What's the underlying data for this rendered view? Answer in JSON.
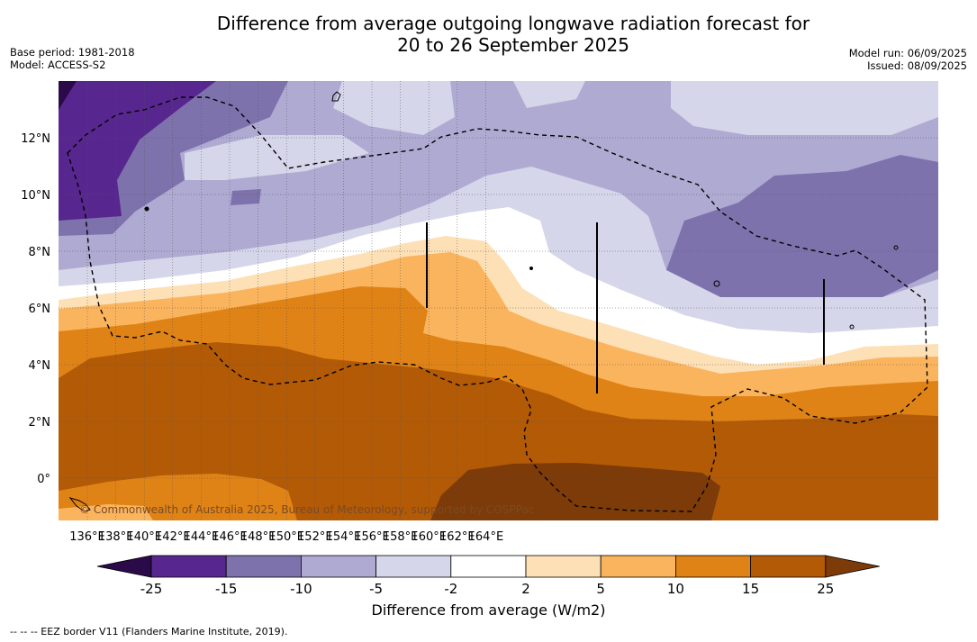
{
  "header": {
    "title_line1": "Difference from average outgoing longwave radiation forecast for",
    "title_line2": "20 to 26 September 2025",
    "base_period": "Base period: 1981-2018",
    "model": "Model: ACCESS-S2",
    "model_run": "Model run: 06/09/2025",
    "issued": "Issued: 08/09/2025"
  },
  "map": {
    "lon_ticks": [
      "136°E",
      "138°E",
      "140°E",
      "142°E",
      "144°E",
      "146°E",
      "148°E",
      "150°E",
      "152°E",
      "154°E",
      "156°E",
      "158°E",
      "160°E",
      "162°E",
      "164°E"
    ],
    "lat_ticks": [
      "12°N",
      "10°N",
      "8°N",
      "6°N",
      "4°N",
      "2°N",
      "0°"
    ],
    "copyright": "© Commonwealth of Australia 2025, Bureau of Meteorology, supported by COSPPac",
    "colors": {
      "c_lt_m25": "#2b0a4a",
      "c_m25_m15": "#57278f",
      "c_m15_m10": "#7e72ad",
      "c_m10_m5": "#afaad2",
      "c_m5_m2": "#d6d6ea",
      "c_m2_2": "#ffffff",
      "c_2_5": "#fde0b5",
      "c_5_10": "#fbb45e",
      "c_10_15": "#e08316",
      "c_15_25": "#b35a07",
      "c_gt_25": "#7c3b08"
    }
  },
  "colorbar": {
    "tick_labels": [
      "-25",
      "-15",
      "-10",
      "-5",
      "-2",
      "2",
      "5",
      "10",
      "15",
      "25"
    ],
    "label": "Difference from average (W/m2)"
  },
  "footnote": "--  --  -- EEZ border V11 (Flanders Marine Institute, 2019)."
}
